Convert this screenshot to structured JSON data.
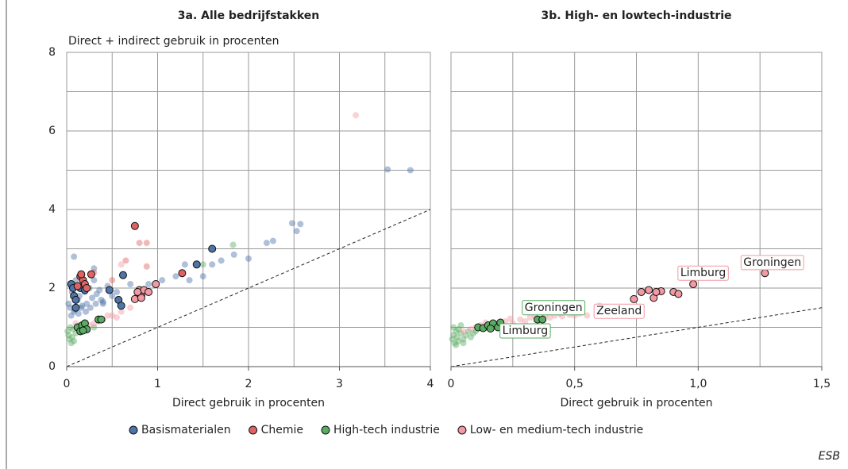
{
  "chart_data": [
    {
      "type": "scatter",
      "title": "3a. Alle bedrijfstakken",
      "ylabel": "Direct + indirect gebruik  in procenten",
      "xlabel": "Direct gebruik in procenten",
      "xlim": [
        0,
        4
      ],
      "ylim": [
        0,
        8
      ],
      "xticks": [
        0,
        1,
        2,
        3,
        4
      ],
      "yticks": [
        0,
        2,
        4,
        6,
        8
      ],
      "xgrid": [
        0.5,
        1.5,
        2.5,
        3.5
      ],
      "ygrid": [
        1,
        3,
        5,
        7
      ],
      "grid": true,
      "diagonal": true,
      "series": [
        {
          "name": "Basismaterialen",
          "color": "#4e74a8",
          "x": [
            0.02,
            0.04,
            0.06,
            0.08,
            0.1,
            0.12,
            0.14,
            0.16,
            0.18,
            0.2,
            0.22,
            0.25,
            0.28,
            0.3,
            0.33,
            0.36,
            0.4,
            0.45,
            0.5,
            0.55,
            0.05,
            0.09,
            0.13,
            0.17,
            0.21,
            0.26,
            0.32,
            0.38,
            0.08,
            0.3,
            0.4,
            0.7,
            0.8,
            0.9,
            1.05,
            1.2,
            1.3,
            1.35,
            1.5,
            1.6,
            1.7,
            1.84,
            2.0,
            2.2,
            2.27,
            2.48,
            2.53,
            2.57,
            3.53,
            3.78
          ],
          "values": [
            1.6,
            1.5,
            1.9,
            1.4,
            2.2,
            1.7,
            1.8,
            1.5,
            2.1,
            1.9,
            1.6,
            2.0,
            1.75,
            2.2,
            1.85,
            1.95,
            1.65,
            2.05,
            1.8,
            1.9,
            1.3,
            1.45,
            1.35,
            1.55,
            1.4,
            1.5,
            1.6,
            1.7,
            2.8,
            2.5,
            1.6,
            2.1,
            1.8,
            2.1,
            2.2,
            2.3,
            2.6,
            2.2,
            2.3,
            2.6,
            2.7,
            2.85,
            2.75,
            3.15,
            3.2,
            3.65,
            3.45,
            3.63,
            5.02,
            5.0
          ],
          "highlight_x": [
            0.05,
            0.07,
            0.08,
            0.1,
            0.1,
            0.15,
            0.2,
            0.47,
            0.57,
            0.6,
            0.62,
            1.43,
            1.6
          ],
          "highlight_values": [
            2.1,
            2.0,
            1.8,
            1.7,
            1.5,
            2.0,
            1.95,
            1.95,
            1.7,
            1.55,
            2.33,
            2.6,
            3.0
          ]
        },
        {
          "name": "Chemie",
          "color": "#e06363",
          "x": [
            0.8,
            0.88,
            0.88,
            0.65,
            0.5,
            0.3
          ],
          "values": [
            3.15,
            3.15,
            2.55,
            2.7,
            2.2,
            2.4
          ],
          "highlight_x": [
            0.75,
            0.15,
            0.18,
            0.16,
            0.2,
            0.27,
            0.22,
            1.27,
            0.12
          ],
          "highlight_values": [
            3.58,
            2.3,
            2.2,
            2.35,
            2.1,
            2.35,
            2.0,
            2.38,
            2.05
          ]
        },
        {
          "name": "High-tech industrie",
          "color": "#5aac63",
          "x": [
            0.02,
            0.03,
            0.05,
            0.01,
            0.06,
            0.04,
            0.08,
            0.1,
            0.07,
            0.3,
            1.5,
            1.83
          ],
          "values": [
            0.8,
            0.7,
            0.6,
            0.9,
            0.75,
            1.0,
            0.65,
            0.85,
            0.95,
            1.0,
            2.6,
            3.1
          ],
          "highlight_x": [
            0.12,
            0.15,
            0.17,
            0.2,
            0.22,
            0.18,
            0.35,
            0.38
          ],
          "highlight_values": [
            1.0,
            0.9,
            1.05,
            1.1,
            0.95,
            0.92,
            1.2,
            1.2
          ]
        },
        {
          "name": "Low- en medium-tech industrie",
          "color": "#f19aa3",
          "x": [
            3.18,
            0.6,
            0.5,
            0.4,
            0.3,
            0.25,
            0.6,
            0.7,
            0.2,
            0.45,
            0.1,
            0.55,
            0.35,
            0.15
          ],
          "values": [
            6.4,
            2.6,
            1.3,
            1.2,
            1.1,
            1.05,
            1.4,
            1.5,
            1.0,
            1.3,
            1.1,
            1.25,
            1.15,
            1.0
          ],
          "highlight_x": [
            0.75,
            0.8,
            0.82,
            0.85,
            0.9,
            0.82,
            0.98,
            0.78
          ],
          "highlight_values": [
            1.72,
            1.95,
            1.8,
            1.95,
            1.9,
            1.75,
            2.1,
            1.9
          ]
        }
      ]
    },
    {
      "type": "scatter",
      "title": "3b. High- en lowtech-industrie",
      "xlabel": "Direct gebruik in procenten",
      "xlim": [
        0,
        1.5
      ],
      "ylim": [
        0,
        8
      ],
      "xticks": [
        0,
        {
          "value": 0.5,
          "label": "0,5"
        },
        {
          "value": 1.0,
          "label": "1,0"
        },
        {
          "value": 1.5,
          "label": "1,5"
        }
      ],
      "xgrid": [
        0.25,
        0.75,
        1.25
      ],
      "ygrid": [
        1,
        2,
        3,
        4,
        5,
        6,
        7,
        8
      ],
      "grid": true,
      "diagonal": true,
      "series": [
        {
          "color": "#5aac63",
          "x": [
            0.005,
            0.01,
            0.015,
            0.02,
            0.025,
            0.03,
            0.04,
            0.05,
            0.06,
            0.07,
            0.08,
            0.01,
            0.03,
            0.05,
            0.02,
            0.04,
            0.09,
            0.1
          ],
          "values": [
            0.7,
            0.8,
            0.6,
            0.9,
            0.75,
            0.65,
            0.85,
            0.7,
            0.8,
            0.9,
            0.75,
            1.0,
            0.95,
            0.6,
            0.55,
            1.05,
            0.85,
            0.9
          ],
          "highlight_x": [
            0.11,
            0.13,
            0.15,
            0.17,
            0.19,
            0.2,
            0.16,
            0.35,
            0.37
          ],
          "highlight_values": [
            1.0,
            0.98,
            1.05,
            1.1,
            1.0,
            1.12,
            0.97,
            1.2,
            1.2
          ]
        },
        {
          "color": "#f19aa3",
          "x": [
            0.05,
            0.08,
            0.1,
            0.12,
            0.15,
            0.18,
            0.2,
            0.22,
            0.25,
            0.28,
            0.3,
            0.32,
            0.35,
            0.38,
            0.4,
            0.42,
            0.45,
            0.48,
            0.5,
            0.52,
            0.55,
            0.14,
            0.24,
            0.34,
            0.44,
            0.6
          ],
          "values": [
            0.9,
            0.95,
            1.0,
            1.05,
            0.98,
            1.1,
            1.05,
            1.15,
            1.1,
            1.2,
            1.15,
            1.25,
            1.2,
            1.3,
            1.25,
            1.3,
            1.28,
            1.32,
            1.3,
            1.35,
            1.3,
            1.12,
            1.22,
            1.28,
            1.35,
            1.55
          ],
          "highlight_x": [
            0.74,
            0.77,
            0.8,
            0.82,
            0.85,
            0.9,
            0.92,
            0.98,
            1.27,
            0.83
          ],
          "highlight_values": [
            1.72,
            1.9,
            1.95,
            1.75,
            1.92,
            1.9,
            1.85,
            2.1,
            2.38,
            1.9
          ]
        }
      ],
      "annotations": [
        {
          "text": "Groningen",
          "x": 0.415,
          "y": 1.5,
          "color": "#5aac63"
        },
        {
          "text": "Limburg",
          "x": 0.3,
          "y": 0.91,
          "color": "#5aac63"
        },
        {
          "text": "Zeeland",
          "x": 0.68,
          "y": 1.41,
          "color": "#f19aa3"
        },
        {
          "text": "Limburg",
          "x": 1.02,
          "y": 2.38,
          "color": "#f19aa3"
        },
        {
          "text": "Groningen",
          "x": 1.3,
          "y": 2.65,
          "color": "#f19aa3"
        }
      ]
    }
  ],
  "source": "ESB"
}
